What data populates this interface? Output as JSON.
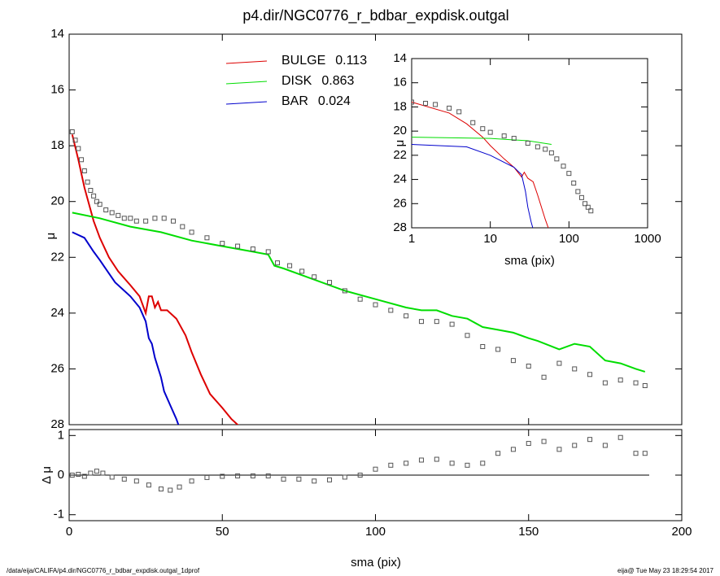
{
  "chart_data": [
    {
      "type": "line",
      "title": "p4.dir/NGC0776_r_bdbar_expdisk.outgal",
      "ylabel": "μ",
      "xlim": [
        0,
        200
      ],
      "ylim": [
        14,
        28
      ],
      "invert_y": true,
      "xticks": [
        0,
        50,
        100,
        150,
        200
      ],
      "yticks": [
        14,
        16,
        18,
        20,
        22,
        24,
        26,
        28
      ],
      "series": [
        {
          "name": "BULGE",
          "fraction": 0.113,
          "color": "#dd0000",
          "mode": "line",
          "x": [
            1,
            3,
            5,
            8,
            10,
            13,
            16,
            20,
            23,
            25,
            26,
            27,
            28,
            29,
            30,
            32,
            35,
            38,
            40,
            43,
            46,
            50,
            53,
            56
          ],
          "values": [
            17.6,
            18.5,
            19.5,
            20.7,
            21.3,
            22.0,
            22.5,
            23.0,
            23.4,
            24.0,
            23.4,
            23.4,
            23.8,
            23.6,
            23.9,
            23.9,
            24.2,
            24.8,
            25.4,
            26.2,
            26.9,
            27.4,
            27.8,
            28.1
          ]
        },
        {
          "name": "DISK",
          "fraction": 0.863,
          "color": "#00dd00",
          "mode": "line",
          "x": [
            1,
            10,
            20,
            25,
            30,
            40,
            50,
            60,
            65,
            67,
            70,
            80,
            90,
            100,
            110,
            115,
            120,
            125,
            130,
            135,
            140,
            145,
            150,
            153,
            160,
            165,
            170,
            175,
            180,
            185,
            188
          ],
          "values": [
            20.4,
            20.6,
            20.9,
            21.0,
            21.1,
            21.4,
            21.6,
            21.8,
            21.9,
            22.3,
            22.4,
            22.8,
            23.2,
            23.5,
            23.8,
            23.9,
            23.9,
            24.1,
            24.2,
            24.5,
            24.6,
            24.7,
            24.9,
            25.0,
            25.3,
            25.1,
            25.2,
            25.7,
            25.8,
            26.0,
            26.1
          ]
        },
        {
          "name": "BAR",
          "fraction": 0.024,
          "color": "#0000cc",
          "mode": "line",
          "x": [
            1,
            5,
            8,
            10,
            15,
            20,
            23,
            25,
            26,
            27,
            28,
            30,
            31,
            33,
            35,
            36
          ],
          "values": [
            21.1,
            21.3,
            21.8,
            22.1,
            22.9,
            23.4,
            23.8,
            24.3,
            24.9,
            25.1,
            25.6,
            26.3,
            26.8,
            27.3,
            27.8,
            28.1
          ]
        },
        {
          "color": "#555555",
          "mode": "markers",
          "x": [
            1,
            2,
            3,
            4,
            5,
            6,
            7,
            8,
            9,
            10,
            12,
            14,
            16,
            18,
            20,
            22,
            25,
            28,
            31,
            34,
            37,
            40,
            45,
            50,
            55,
            60,
            65,
            68,
            72,
            76,
            80,
            85,
            90,
            95,
            100,
            105,
            110,
            115,
            120,
            125,
            130,
            135,
            140,
            145,
            150,
            155,
            160,
            165,
            170,
            175,
            180,
            185,
            188
          ],
          "values": [
            17.5,
            17.8,
            18.1,
            18.5,
            18.9,
            19.3,
            19.6,
            19.8,
            20.0,
            20.1,
            20.3,
            20.4,
            20.5,
            20.6,
            20.6,
            20.7,
            20.7,
            20.6,
            20.6,
            20.7,
            20.9,
            21.1,
            21.3,
            21.5,
            21.6,
            21.7,
            21.8,
            22.2,
            22.3,
            22.5,
            22.7,
            22.9,
            23.2,
            23.5,
            23.7,
            23.9,
            24.1,
            24.3,
            24.3,
            24.4,
            24.8,
            25.2,
            25.3,
            25.7,
            25.9,
            26.3,
            25.8,
            26.0,
            26.2,
            26.5,
            26.4,
            26.5,
            26.6
          ]
        }
      ]
    },
    {
      "type": "line",
      "ylabel": "Δ μ",
      "xlabel": "sma (pix)",
      "xlim": [
        0,
        200
      ],
      "ylim": [
        -1.15,
        1.15
      ],
      "xticks": [
        0,
        50,
        100,
        150,
        200
      ],
      "yticks": [
        -1,
        0,
        1
      ],
      "series": [
        {
          "color": "#555555",
          "mode": "markers",
          "x": [
            1,
            3,
            5,
            7,
            9,
            11,
            14,
            18,
            22,
            26,
            30,
            33,
            36,
            40,
            45,
            50,
            55,
            60,
            65,
            70,
            75,
            80,
            85,
            90,
            95,
            100,
            105,
            110,
            115,
            120,
            125,
            130,
            135,
            140,
            145,
            150,
            155,
            160,
            165,
            170,
            175,
            180,
            185,
            188
          ],
          "values": [
            0,
            0.02,
            -0.03,
            0.05,
            0.1,
            0.05,
            -0.05,
            -0.1,
            -0.15,
            -0.25,
            -0.35,
            -0.38,
            -0.3,
            -0.15,
            -0.06,
            -0.03,
            -0.02,
            -0.02,
            -0.02,
            -0.1,
            -0.1,
            -0.15,
            -0.12,
            -0.05,
            0,
            0.15,
            0.25,
            0.3,
            0.38,
            0.4,
            0.3,
            0.25,
            0.3,
            0.55,
            0.65,
            0.8,
            0.85,
            0.65,
            0.75,
            0.9,
            0.75,
            0.95,
            0.55,
            0.55
          ]
        }
      ]
    },
    {
      "type": "line",
      "ylabel": "μ",
      "xlabel": "sma (pix)",
      "log_x": true,
      "xlim": [
        1,
        1000
      ],
      "ylim": [
        14,
        28
      ],
      "invert_y": true,
      "xticks": [
        1,
        10,
        100,
        1000
      ],
      "yticks": [
        14,
        16,
        18,
        20,
        22,
        24,
        26,
        28
      ],
      "series": [
        {
          "color": "#dd0000",
          "mode": "line",
          "x": [
            1,
            3,
            5,
            8,
            10,
            15,
            20,
            25,
            27,
            30,
            35,
            40,
            50,
            56
          ],
          "values": [
            17.6,
            18.5,
            19.4,
            20.5,
            21.2,
            22.3,
            23.0,
            23.8,
            23.4,
            23.9,
            24.2,
            25.3,
            27.3,
            28.2
          ]
        },
        {
          "color": "#00dd00",
          "mode": "line",
          "x": [
            1,
            10,
            30,
            60
          ],
          "values": [
            20.5,
            20.6,
            20.8,
            21.1
          ]
        },
        {
          "color": "#0000cc",
          "mode": "line",
          "x": [
            1,
            5,
            10,
            20,
            25,
            28,
            30,
            33,
            35
          ],
          "values": [
            21.1,
            21.3,
            22.0,
            23.0,
            23.6,
            25.0,
            26.3,
            27.5,
            28.1
          ]
        },
        {
          "color": "#555555",
          "mode": "markers",
          "x": [
            1,
            1.5,
            2,
            3,
            4,
            6,
            8,
            10,
            15,
            20,
            30,
            40,
            50,
            60,
            70,
            85,
            100,
            115,
            130,
            145,
            160,
            175,
            190
          ],
          "values": [
            17.6,
            17.7,
            17.8,
            18.1,
            18.4,
            19.3,
            19.8,
            20.1,
            20.4,
            20.6,
            21.0,
            21.3,
            21.5,
            21.8,
            22.3,
            22.9,
            23.5,
            24.3,
            25.0,
            25.5,
            26.0,
            26.3,
            26.6
          ]
        }
      ]
    }
  ],
  "footer": {
    "left": "/data/eija/CALIFA/p4.dir/NGC0776_r_bdbar_expdisk.outgal_1dprof",
    "right": "eija@  Tue May 23 18:29:54 2017"
  }
}
